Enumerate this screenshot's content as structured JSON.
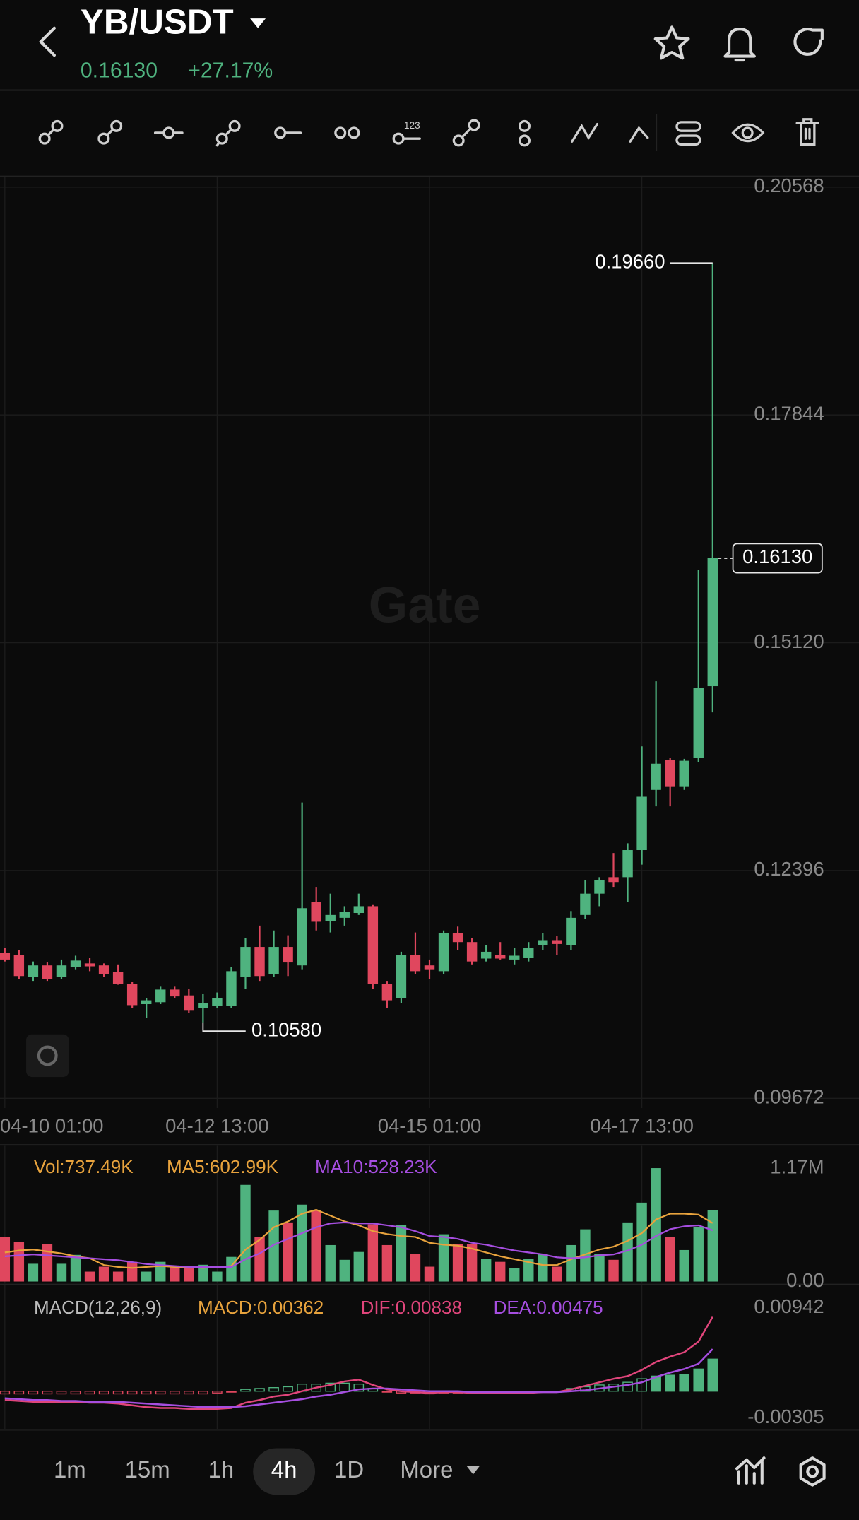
{
  "header": {
    "pair": "YB/USDT",
    "price": "0.16130",
    "change": "+27.17%"
  },
  "chart_data": [
    {
      "type": "candlestick",
      "watermark": "Gate",
      "x": [
        0,
        1,
        2,
        3,
        4,
        5,
        6,
        7,
        8,
        9,
        10,
        11,
        12,
        13,
        14,
        15,
        16,
        17,
        18,
        19,
        20,
        21,
        22,
        23,
        24,
        25,
        26,
        27,
        28,
        29,
        30,
        31,
        32,
        33,
        34,
        35,
        36,
        37,
        38,
        39,
        40,
        41,
        42,
        43,
        44,
        45,
        46,
        47,
        48,
        49,
        50
      ],
      "open": [
        0.11412,
        0.11389,
        0.11122,
        0.11261,
        0.11122,
        0.11238,
        0.11285,
        0.11261,
        0.1118,
        0.11041,
        0.10798,
        0.10821,
        0.10972,
        0.10902,
        0.10751,
        0.10775,
        0.10775,
        0.11122,
        0.11482,
        0.11157,
        0.11482,
        0.11261,
        0.12015,
        0.11795,
        0.1183,
        0.11888,
        0.11969,
        0.11041,
        0.10867,
        0.11389,
        0.11261,
        0.11192,
        0.11644,
        0.1154,
        0.11343,
        0.11389,
        0.11331,
        0.11354,
        0.11505,
        0.11563,
        0.11505,
        0.11864,
        0.12119,
        0.12316,
        0.12316,
        0.1264,
        0.1336,
        0.13719,
        0.13395,
        0.13742,
        0.146
      ],
      "high": [
        0.1147,
        0.11447,
        0.11308,
        0.11296,
        0.11331,
        0.11377,
        0.11354,
        0.11285,
        0.11273,
        0.11064,
        0.10867,
        0.11006,
        0.11006,
        0.10983,
        0.10925,
        0.10937,
        0.11238,
        0.11586,
        0.11737,
        0.11679,
        0.11621,
        0.13209,
        0.122,
        0.12119,
        0.11969,
        0.12119,
        0.11992,
        0.11076,
        0.11424,
        0.11655,
        0.11331,
        0.11679,
        0.11725,
        0.11586,
        0.11505,
        0.1154,
        0.1147,
        0.1154,
        0.11644,
        0.11609,
        0.11911,
        0.12281,
        0.12316,
        0.12605,
        0.12721,
        0.1388,
        0.14658,
        0.13742,
        0.13731,
        0.15991,
        0.1966
      ],
      "low": [
        0.11308,
        0.11099,
        0.11076,
        0.11076,
        0.11099,
        0.11215,
        0.11192,
        0.11122,
        0.1103,
        0.10751,
        0.10636,
        0.10798,
        0.10867,
        0.10693,
        0.1058,
        0.10751,
        0.10751,
        0.10983,
        0.11076,
        0.11122,
        0.11134,
        0.11215,
        0.11679,
        0.11655,
        0.11737,
        0.11864,
        0.10983,
        0.10751,
        0.10809,
        0.11157,
        0.11099,
        0.11157,
        0.11447,
        0.11273,
        0.11308,
        0.11331,
        0.11273,
        0.11308,
        0.11447,
        0.11389,
        0.11447,
        0.11818,
        0.11969,
        0.122,
        0.12015,
        0.12466,
        0.13163,
        0.13163,
        0.1336,
        0.13696,
        0.14287
      ],
      "close": [
        0.11331,
        0.11134,
        0.11261,
        0.11099,
        0.11261,
        0.11319,
        0.1125,
        0.11157,
        0.11041,
        0.10786,
        0.10844,
        0.10972,
        0.1089,
        0.10728,
        0.10809,
        0.10867,
        0.11192,
        0.11482,
        0.11134,
        0.11482,
        0.11296,
        0.11945,
        0.11783,
        0.11864,
        0.11899,
        0.11969,
        0.11041,
        0.10844,
        0.11389,
        0.11192,
        0.11215,
        0.11644,
        0.1154,
        0.11308,
        0.11424,
        0.11343,
        0.11377,
        0.1147,
        0.11563,
        0.11517,
        0.1183,
        0.12119,
        0.12281,
        0.12258,
        0.1264,
        0.13278,
        0.13673,
        0.13395,
        0.13708,
        0.14577,
        0.1613
      ],
      "xlim": [
        -0.34,
        60.34
      ],
      "xticks": [
        {
          "value": 0,
          "label": "04-10 01:00"
        },
        {
          "value": 15,
          "label": "04-12 13:00"
        },
        {
          "value": 30,
          "label": "04-15 01:00"
        },
        {
          "value": 45,
          "label": "04-17 13:00"
        }
      ],
      "ylim": [
        0.09672,
        0.20568
      ],
      "yticks": [
        0.20568,
        0.17844,
        {
          "value": 0.1512,
          "label": "0.15120"
        },
        0.12396,
        0.09672
      ],
      "grid": true,
      "up_color": "#4fb37f",
      "down_color": "#e0475e",
      "annotations": {
        "high": "0.19660",
        "low": "0.10580",
        "last": "0.16130"
      }
    },
    {
      "type": "volume",
      "series": [
        {
          "name": "Vol:737.49K",
          "color": "#e8a33d",
          "values": [
            458000,
            407000,
            183000,
            387000,
            183000,
            275000,
            102000,
            153000,
            102000,
            203000,
            102000,
            203000,
            153000,
            153000,
            173000,
            102000,
            254000,
            997000,
            458000,
            732000,
            610000,
            793000,
            732000,
            376000,
            224000,
            305000,
            590000,
            376000,
            580000,
            285000,
            153000,
            488000,
            387000,
            387000,
            234000,
            203000,
            142000,
            234000,
            285000,
            153000,
            376000,
            539000,
            285000,
            224000,
            610000,
            814000,
            1170000,
            458000,
            325000,
            559000,
            737490
          ]
        },
        {
          "name": "MA5:602.99K",
          "color": "#e8a33d",
          "values": [
            300000,
            320000,
            330000,
            310000,
            290000,
            260000,
            240000,
            170000,
            150000,
            140000,
            150000,
            160000,
            150000,
            150000,
            140000,
            150000,
            160000,
            330000,
            430000,
            560000,
            620000,
            700000,
            740000,
            680000,
            620000,
            580000,
            520000,
            490000,
            470000,
            460000,
            400000,
            380000,
            370000,
            340000,
            300000,
            260000,
            230000,
            200000,
            170000,
            170000,
            230000,
            280000,
            330000,
            360000,
            420000,
            500000,
            640000,
            700000,
            700000,
            690000,
            602990
          ]
        },
        {
          "name": "MA10:528.23K",
          "color": "#a64ee0",
          "values": [
            260000,
            270000,
            280000,
            270000,
            260000,
            250000,
            240000,
            230000,
            220000,
            200000,
            180000,
            170000,
            160000,
            150000,
            150000,
            150000,
            150000,
            230000,
            290000,
            380000,
            440000,
            500000,
            560000,
            600000,
            610000,
            600000,
            600000,
            580000,
            560000,
            520000,
            470000,
            460000,
            440000,
            400000,
            380000,
            350000,
            320000,
            300000,
            280000,
            250000,
            240000,
            250000,
            270000,
            280000,
            320000,
            380000,
            470000,
            540000,
            570000,
            580000,
            528230
          ]
        }
      ],
      "ylim": [
        0,
        1170000
      ],
      "yticks": [
        {
          "value": 1170000,
          "label": "1.17M"
        },
        {
          "value": 0,
          "label": "0.00"
        }
      ]
    },
    {
      "type": "macd",
      "title": "MACD(12,26,9)",
      "series": [
        {
          "name": "MACD:0.00362",
          "color": "#e8a33d",
          "values": [
            -0.0003,
            -0.0003,
            -0.0003,
            -0.0003,
            -0.0003,
            -0.0003,
            -0.0003,
            -0.0003,
            -0.0003,
            -0.0003,
            -0.0003,
            -0.0003,
            -0.0003,
            -0.0003,
            -0.0003,
            -0.0002,
            -0.0001,
            0.0002,
            0.0003,
            0.0004,
            0.0005,
            0.0008,
            0.0008,
            0.0009,
            0.0009,
            0.0008,
            0.0003,
            -0.0001,
            -0.0002,
            -0.0002,
            -0.0003,
            -0.0002,
            -0.0002,
            -0.0002,
            -0.0001,
            -0.0001,
            -0.0001,
            -0.0001,
            0,
            0,
            0.0003,
            0.0005,
            0.0007,
            0.0008,
            0.001,
            0.0014,
            0.0017,
            0.0018,
            0.0019,
            0.0025,
            0.00362
          ]
        },
        {
          "name": "DIF:0.00838",
          "color": "#e0457b",
          "values": [
            -0.001,
            -0.0011,
            -0.0012,
            -0.0012,
            -0.0012,
            -0.0012,
            -0.0013,
            -0.0013,
            -0.0014,
            -0.0016,
            -0.0018,
            -0.0019,
            -0.0019,
            -0.002,
            -0.002,
            -0.002,
            -0.0019,
            -0.0013,
            -0.001,
            -0.0006,
            -0.0004,
            0,
            0.0004,
            0.0007,
            0.0011,
            0.0013,
            0.0007,
            0.0002,
            0,
            -0.0001,
            -0.0002,
            -0.0001,
            -0.0001,
            -0.0002,
            -0.0002,
            -0.0002,
            -0.0002,
            -0.0002,
            -0.0001,
            -0.0001,
            0.0002,
            0.0006,
            0.001,
            0.0014,
            0.0017,
            0.0024,
            0.0033,
            0.0039,
            0.0044,
            0.0056,
            0.00838
          ]
        },
        {
          "name": "DEA:0.00475",
          "color": "#a64ee0",
          "values": [
            -0.0008,
            -0.0009,
            -0.001,
            -0.001,
            -0.0011,
            -0.0011,
            -0.0012,
            -0.0012,
            -0.0012,
            -0.0013,
            -0.0014,
            -0.0015,
            -0.0016,
            -0.0017,
            -0.0018,
            -0.0018,
            -0.0018,
            -0.0017,
            -0.0015,
            -0.0013,
            -0.0011,
            -0.0009,
            -0.0006,
            -0.0004,
            -0.0001,
            0.0002,
            0.0003,
            0.0003,
            0.0002,
            0.0001,
            0,
            0,
            0,
            -0.0001,
            -0.0001,
            -0.0001,
            -0.0001,
            -0.0001,
            -0.0001,
            -0.0001,
            0,
            0.0001,
            0.0003,
            0.0005,
            0.0007,
            0.001,
            0.0016,
            0.0021,
            0.0025,
            0.0031,
            0.00475
          ]
        }
      ],
      "ylim": [
        -0.00305,
        0.00942
      ],
      "yticks": [
        0.00942,
        -0.00305
      ]
    }
  ],
  "timeframes": [
    "1m",
    "15m",
    "1h",
    "4h",
    "1D",
    "More"
  ]
}
